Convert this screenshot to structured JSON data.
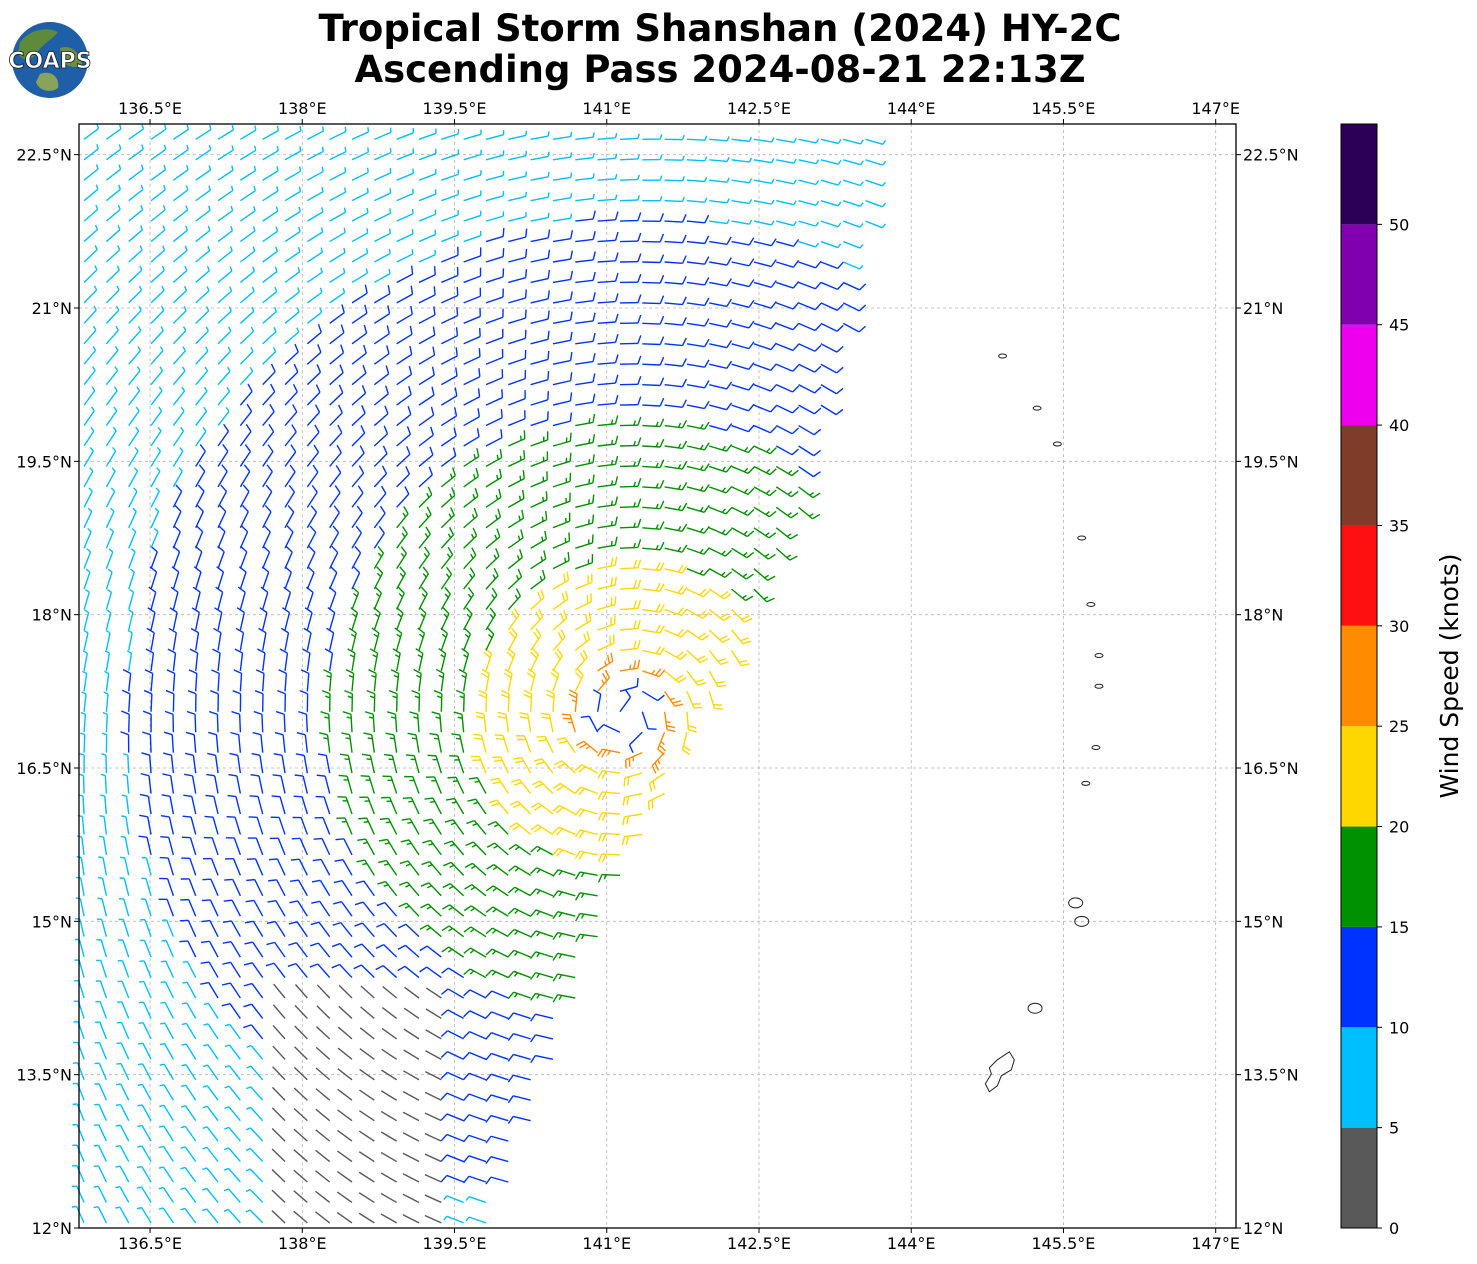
{
  "title": {
    "line1": "Tropical Storm Shanshan (2024) HY-2C",
    "line2": "Ascending Pass 2024-08-21 22:13Z"
  },
  "logo": {
    "text": "COAPS",
    "icon": "globe-icon"
  },
  "map": {
    "lon_range": [
      135.8,
      147.2
    ],
    "lat_range": [
      12.0,
      22.8
    ],
    "lon_ticks": [
      {
        "value": 136.5,
        "label": "136.5°E"
      },
      {
        "value": 138.0,
        "label": "138°E"
      },
      {
        "value": 139.5,
        "label": "139.5°E"
      },
      {
        "value": 141.0,
        "label": "141°E"
      },
      {
        "value": 142.5,
        "label": "142.5°E"
      },
      {
        "value": 144.0,
        "label": "144°E"
      },
      {
        "value": 145.5,
        "label": "145.5°E"
      },
      {
        "value": 147.0,
        "label": "147°E"
      }
    ],
    "lat_ticks": [
      {
        "value": 22.5,
        "label": "22.5°N"
      },
      {
        "value": 21.0,
        "label": "21°N"
      },
      {
        "value": 19.5,
        "label": "19.5°N"
      },
      {
        "value": 18.0,
        "label": "18°N"
      },
      {
        "value": 16.5,
        "label": "16.5°N"
      },
      {
        "value": 15.0,
        "label": "15°N"
      },
      {
        "value": 13.5,
        "label": "13.5°N"
      },
      {
        "value": 12.0,
        "label": "12°N"
      }
    ],
    "grid": true,
    "swath": {
      "east_edge": [
        [
          12.0,
          139.9
        ],
        [
          15.0,
          141.0
        ],
        [
          19.0,
          142.9
        ],
        [
          22.8,
          143.8
        ]
      ]
    },
    "storm_center": {
      "lon": 141.2,
      "lat": 17.0
    },
    "islands": [
      {
        "lon": 144.75,
        "lat": 13.45,
        "name": ""
      },
      {
        "lon": 145.22,
        "lat": 14.15,
        "name": ""
      },
      {
        "lon": 145.62,
        "lat": 15.18,
        "name": ""
      },
      {
        "lon": 145.68,
        "lat": 15.0,
        "name": ""
      },
      {
        "lon": 145.72,
        "lat": 16.35,
        "name": ""
      },
      {
        "lon": 145.82,
        "lat": 16.7,
        "name": ""
      },
      {
        "lon": 145.85,
        "lat": 17.3,
        "name": ""
      },
      {
        "lon": 145.85,
        "lat": 17.6,
        "name": ""
      },
      {
        "lon": 145.77,
        "lat": 18.1,
        "name": ""
      },
      {
        "lon": 145.68,
        "lat": 18.75,
        "name": ""
      },
      {
        "lon": 145.44,
        "lat": 19.67,
        "name": ""
      },
      {
        "lon": 145.24,
        "lat": 20.02,
        "name": ""
      },
      {
        "lon": 144.9,
        "lat": 20.53,
        "name": ""
      }
    ]
  },
  "colorbar": {
    "label": "Wind Speed (knots)",
    "tick_labels": [
      "0",
      "5",
      "10",
      "15",
      "20",
      "25",
      "30",
      "35",
      "40",
      "45",
      "50"
    ],
    "bins": [
      {
        "min": 0,
        "max": 5,
        "color": "#595959"
      },
      {
        "min": 5,
        "max": 10,
        "color": "#00bfff"
      },
      {
        "min": 10,
        "max": 15,
        "color": "#0033ff"
      },
      {
        "min": 15,
        "max": 20,
        "color": "#009100"
      },
      {
        "min": 20,
        "max": 25,
        "color": "#ffd700"
      },
      {
        "min": 25,
        "max": 30,
        "color": "#ff8c00"
      },
      {
        "min": 30,
        "max": 35,
        "color": "#ff1010"
      },
      {
        "min": 35,
        "max": 40,
        "color": "#7f3c28"
      },
      {
        "min": 40,
        "max": 45,
        "color": "#ee00ee"
      },
      {
        "min": 45,
        "max": 50,
        "color": "#8000b0"
      },
      {
        "min": 50,
        "max": 55,
        "color": "#2d0057"
      }
    ]
  }
}
